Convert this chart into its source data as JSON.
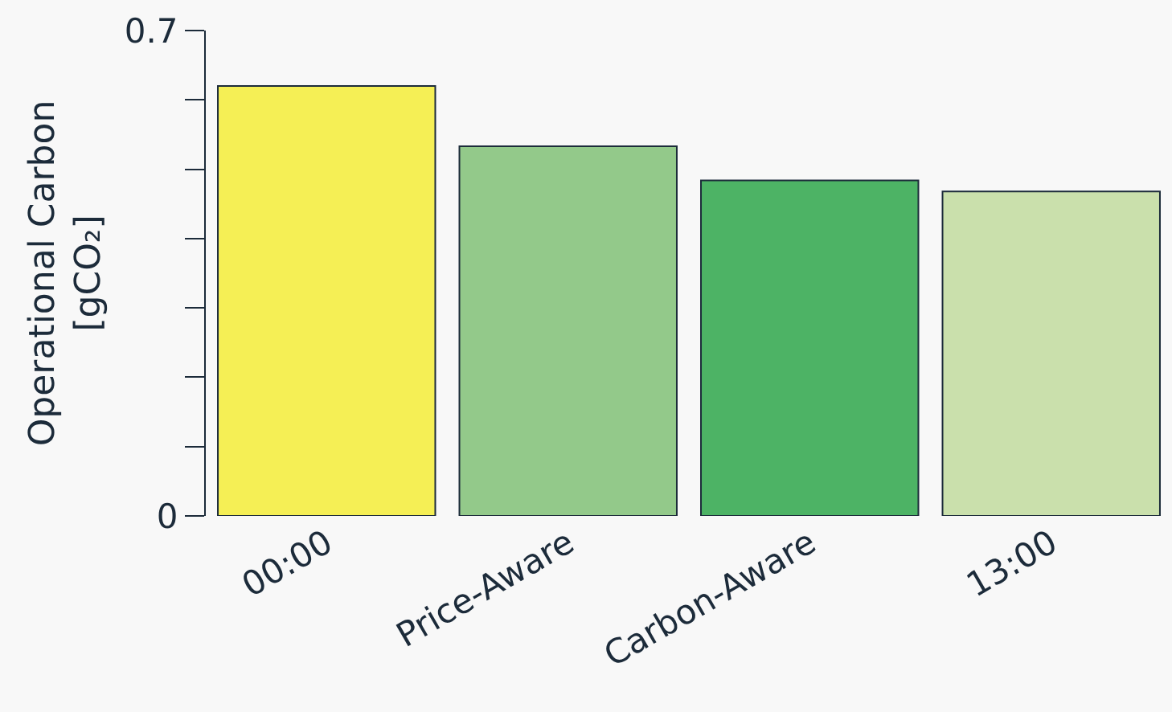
{
  "chart_data": {
    "type": "bar",
    "ylabel": "Operational Carbon\n[gCO₂]",
    "categories": [
      "00:00",
      "Price-Aware",
      "Carbon-Aware",
      "13:00"
    ],
    "values": [
      0.62,
      0.533,
      0.484,
      0.468
    ],
    "colors": [
      "#f5ef55",
      "#93c98a",
      "#4db365",
      "#cae0ac"
    ],
    "ylim": [
      0,
      0.7
    ],
    "yticks": [
      0,
      {
        "value": 0.1,
        "label": null
      },
      {
        "value": 0.2,
        "label": null
      },
      {
        "value": 0.3,
        "label": null
      },
      {
        "value": 0.4,
        "label": null
      },
      {
        "value": 0.5,
        "label": null
      },
      {
        "value": 0.6,
        "label": null
      },
      0.7
    ],
    "grid": false
  }
}
